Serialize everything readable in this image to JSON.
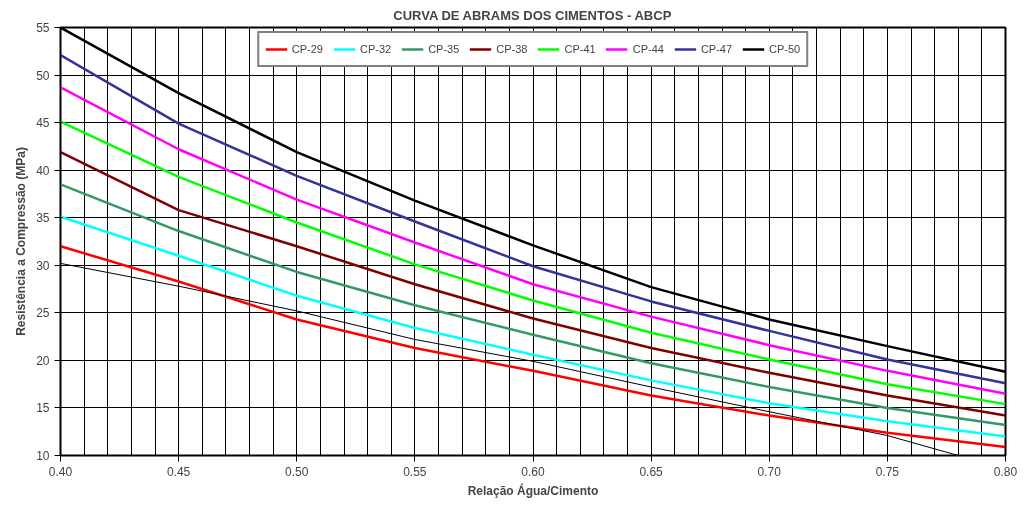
{
  "chart_data": {
    "type": "line",
    "title": "CURVA DE ABRAMS DOS CIMENTOS - ABCP",
    "xlabel": "Relação Água/Cimento",
    "ylabel": "Resistência a Compressão (MPa)",
    "x": [
      0.4,
      0.45,
      0.5,
      0.55,
      0.6,
      0.65,
      0.7,
      0.75,
      0.8
    ],
    "series": [
      {
        "name": "CP-29",
        "color": "#ff0000",
        "values": [
          32.0,
          28.3,
          24.3,
          21.3,
          18.9,
          16.3,
          14.2,
          12.4,
          10.9
        ]
      },
      {
        "name": "CP-32",
        "color": "#00ffff",
        "values": [
          35.1,
          31.0,
          26.8,
          23.4,
          20.6,
          17.9,
          15.5,
          13.6,
          12.0
        ]
      },
      {
        "name": "CP-35",
        "color": "#339966",
        "values": [
          38.5,
          33.6,
          29.3,
          25.8,
          22.7,
          19.7,
          17.2,
          15.0,
          13.2
        ]
      },
      {
        "name": "CP-38",
        "color": "#800000",
        "values": [
          41.9,
          35.8,
          32.0,
          28.0,
          24.4,
          21.3,
          18.7,
          16.3,
          14.2
        ]
      },
      {
        "name": "CP-41",
        "color": "#00ff00",
        "values": [
          45.1,
          39.3,
          34.5,
          30.1,
          26.3,
          22.9,
          20.1,
          17.5,
          15.4
        ]
      },
      {
        "name": "CP-44",
        "color": "#ff00ff",
        "values": [
          48.7,
          42.2,
          36.9,
          32.4,
          28.0,
          24.6,
          21.6,
          18.9,
          16.5
        ]
      },
      {
        "name": "CP-47",
        "color": "#333399",
        "values": [
          52.1,
          44.9,
          39.4,
          34.6,
          29.9,
          26.2,
          23.1,
          20.1,
          17.6
        ]
      },
      {
        "name": "CP-50",
        "color": "#000000",
        "values": [
          55.0,
          48.1,
          41.9,
          36.8,
          32.1,
          27.7,
          24.3,
          21.5,
          18.8
        ]
      },
      {
        "color": "#000000",
        "x": [
          0.4,
          0.45,
          0.5,
          0.55,
          0.6,
          0.65,
          0.7,
          0.75,
          0.78
        ],
        "values": [
          30.2,
          27.8,
          25.2,
          22.2,
          19.9,
          17.2,
          14.6,
          12.1,
          10.0
        ]
      }
    ],
    "xlim": [
      0.4,
      0.8
    ],
    "ylim": [
      10,
      55
    ],
    "xticks": [
      {
        "value": 0.4,
        "label": "0.40"
      },
      {
        "value": 0.41,
        "label": null
      },
      {
        "value": 0.42,
        "label": null
      },
      {
        "value": 0.43,
        "label": null
      },
      {
        "value": 0.44,
        "label": null
      },
      {
        "value": 0.45,
        "label": "0.45"
      },
      {
        "value": 0.46,
        "label": null
      },
      {
        "value": 0.47,
        "label": null
      },
      {
        "value": 0.48,
        "label": null
      },
      {
        "value": 0.49,
        "label": null
      },
      {
        "value": 0.5,
        "label": "0.50"
      },
      {
        "value": 0.51,
        "label": null
      },
      {
        "value": 0.52,
        "label": null
      },
      {
        "value": 0.53,
        "label": null
      },
      {
        "value": 0.54,
        "label": null
      },
      {
        "value": 0.55,
        "label": "0.55"
      },
      {
        "value": 0.56,
        "label": null
      },
      {
        "value": 0.57,
        "label": null
      },
      {
        "value": 0.58,
        "label": null
      },
      {
        "value": 0.59,
        "label": null
      },
      {
        "value": 0.6,
        "label": "0.60"
      },
      {
        "value": 0.61,
        "label": null
      },
      {
        "value": 0.62,
        "label": null
      },
      {
        "value": 0.63,
        "label": null
      },
      {
        "value": 0.64,
        "label": null
      },
      {
        "value": 0.65,
        "label": "0.65"
      },
      {
        "value": 0.66,
        "label": null
      },
      {
        "value": 0.67,
        "label": null
      },
      {
        "value": 0.68,
        "label": null
      },
      {
        "value": 0.69,
        "label": null
      },
      {
        "value": 0.7,
        "label": "0.70"
      },
      {
        "value": 0.71,
        "label": null
      },
      {
        "value": 0.72,
        "label": null
      },
      {
        "value": 0.73,
        "label": null
      },
      {
        "value": 0.74,
        "label": null
      },
      {
        "value": 0.75,
        "label": "0.75"
      },
      {
        "value": 0.76,
        "label": null
      },
      {
        "value": 0.77,
        "label": null
      },
      {
        "value": 0.78,
        "label": null
      },
      {
        "value": 0.79,
        "label": null
      },
      {
        "value": 0.8,
        "label": "0.80"
      }
    ],
    "yticks": [
      10,
      15,
      20,
      25,
      30,
      35,
      40,
      45,
      50,
      55
    ],
    "grid": true,
    "legend": "top",
    "line_style": "solid"
  }
}
